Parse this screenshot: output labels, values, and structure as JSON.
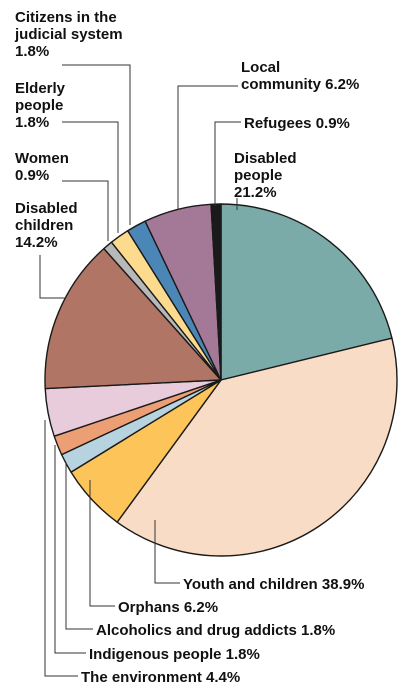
{
  "chart_data": {
    "type": "pie",
    "title": "",
    "slices": [
      {
        "lines": [
          "Disabled",
          "people",
          "21.2%"
        ],
        "value": 21.2,
        "color": "#7aaba9"
      },
      {
        "lines": [
          "Youth and children 38.9%"
        ],
        "value": 38.9,
        "color": "#f9dcc5"
      },
      {
        "lines": [
          "Orphans 6.2%"
        ],
        "value": 6.2,
        "color": "#fdc45a"
      },
      {
        "lines": [
          "Alcoholics and drug addicts 1.8%"
        ],
        "value": 1.8,
        "color": "#b7d3e0"
      },
      {
        "lines": [
          "Indigenous people 1.8%"
        ],
        "value": 1.8,
        "color": "#ec9f74"
      },
      {
        "lines": [
          "The environment 4.4%"
        ],
        "value": 4.4,
        "color": "#e8ccdc"
      },
      {
        "lines": [
          "Disabled",
          "children",
          "14.2%"
        ],
        "value": 14.2,
        "color": "#b07565"
      },
      {
        "lines": [
          "Women",
          "0.9%"
        ],
        "value": 0.9,
        "color": "#b8b8b8"
      },
      {
        "lines": [
          "Elderly",
          "people",
          "1.8%"
        ],
        "value": 1.8,
        "color": "#fddb8e"
      },
      {
        "lines": [
          "Citizens in the",
          "judicial system",
          "1.8%"
        ],
        "value": 1.8,
        "color": "#4b87b6"
      },
      {
        "lines": [
          "Local",
          "community 6.2%"
        ],
        "value": 6.2,
        "color": "#a47998"
      },
      {
        "lines": [
          "Refugees 0.9%"
        ],
        "value": 0.9,
        "color": "#1a1a1a"
      }
    ]
  }
}
